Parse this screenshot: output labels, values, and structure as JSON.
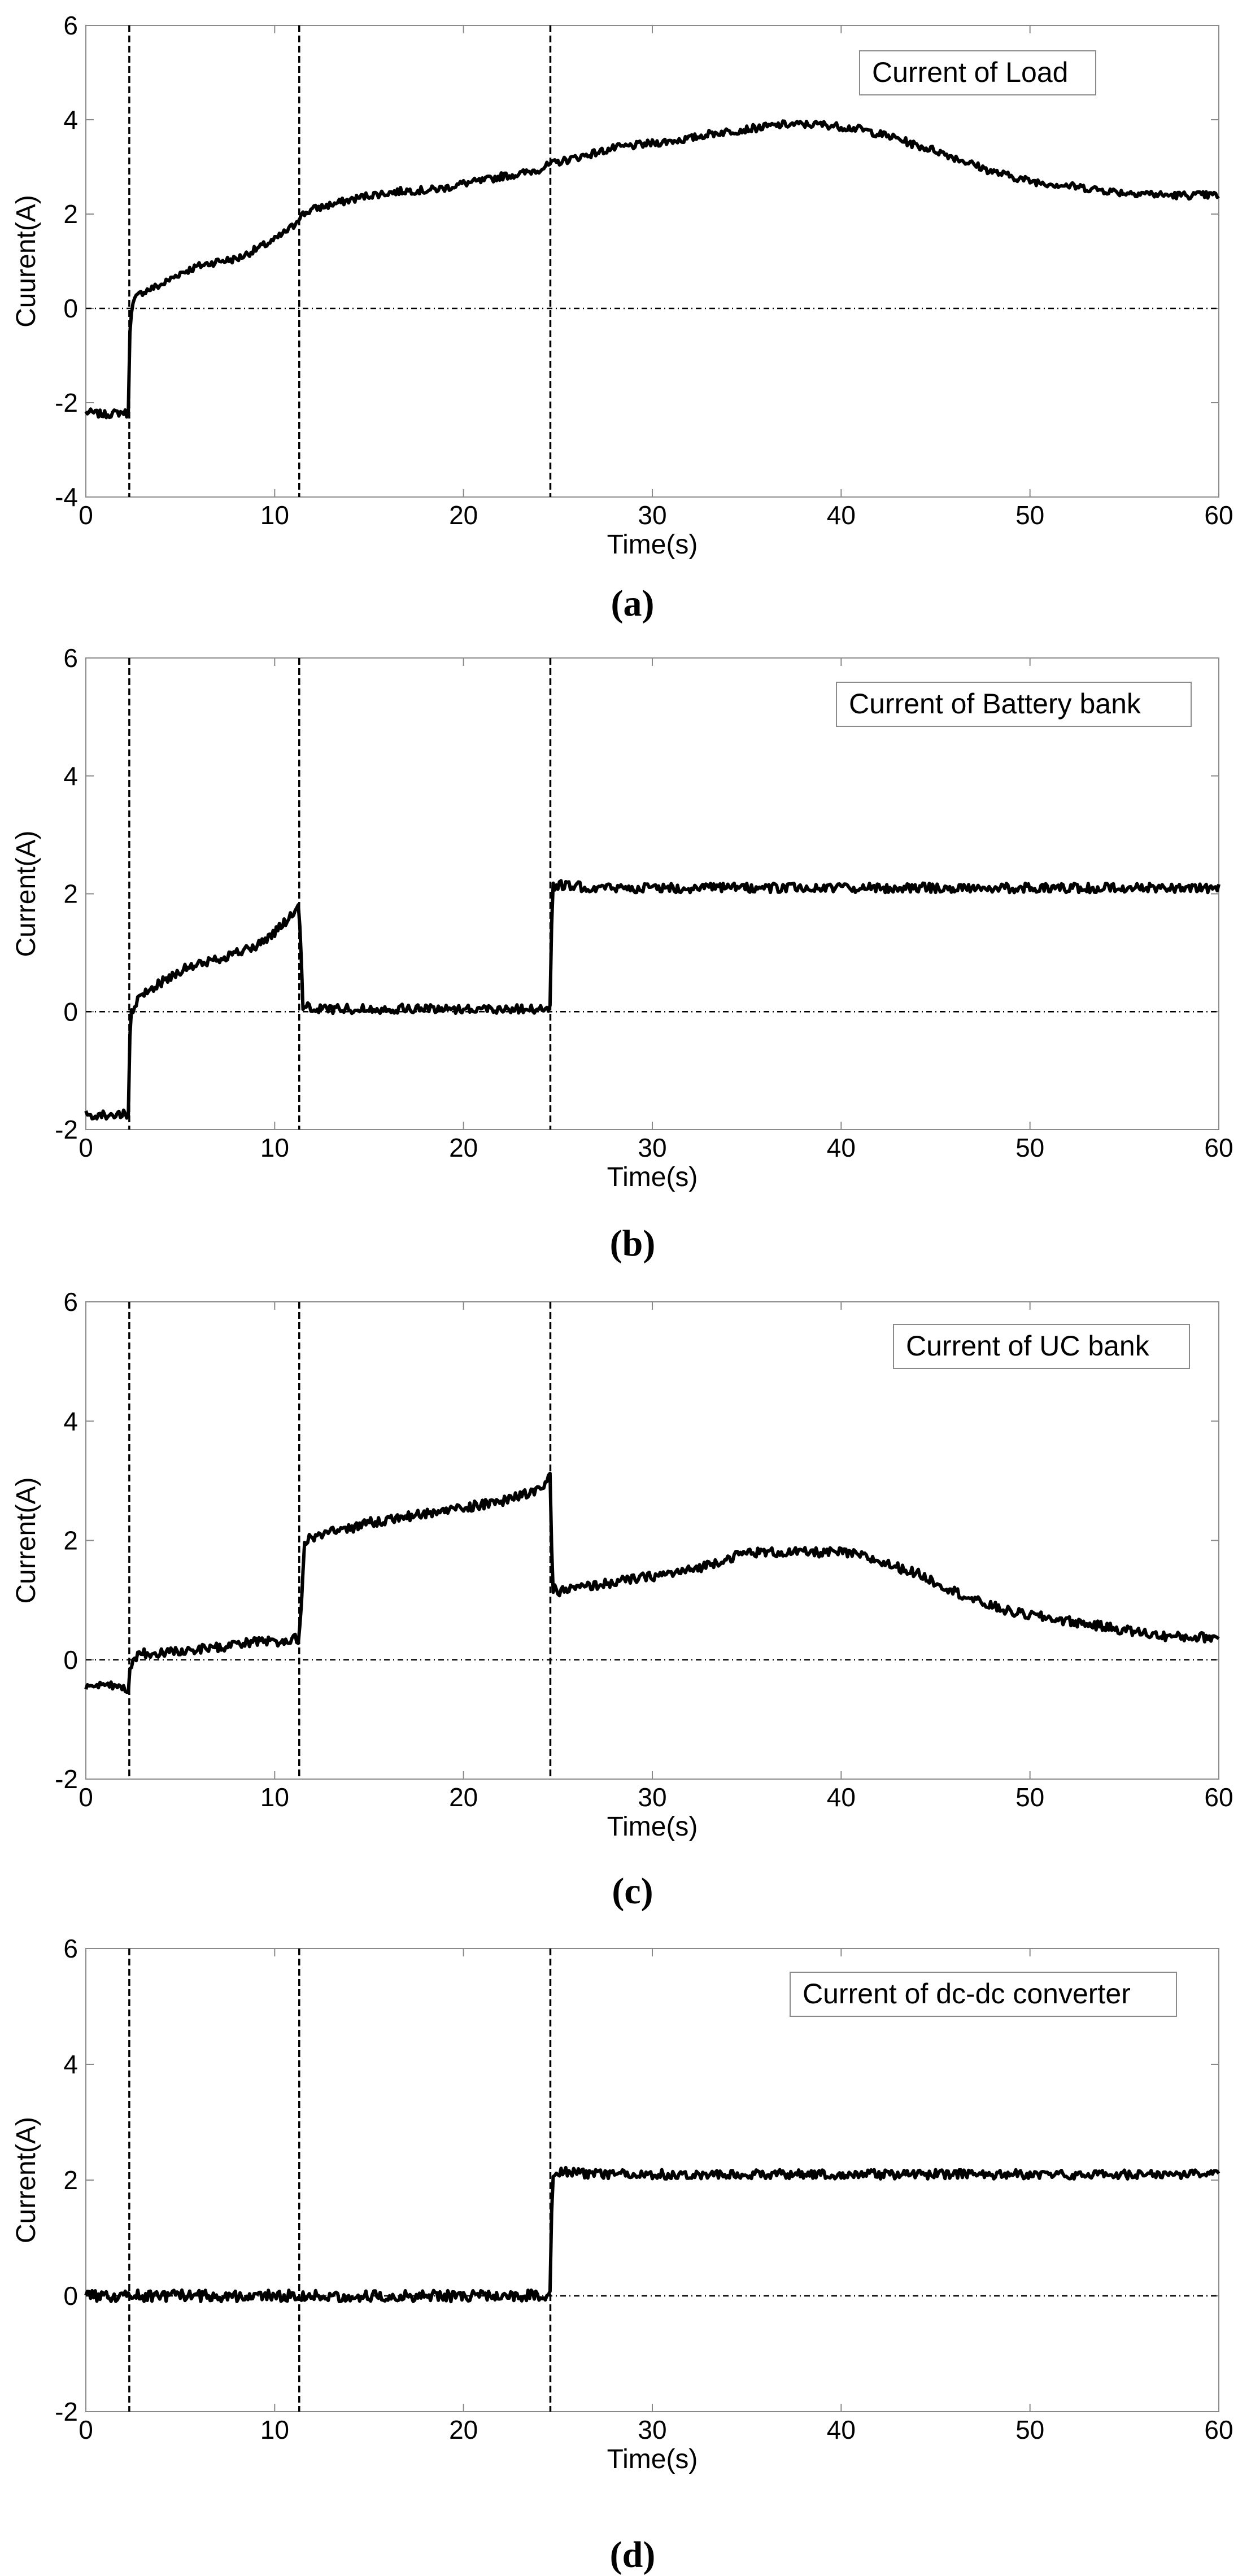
{
  "chart_data": [
    {
      "id": "a",
      "type": "line",
      "caption": "(a)",
      "legend": "Current of Load",
      "xlabel": "Time(s)",
      "ylabel": "Cuurent(A)",
      "xlim": [
        0,
        60
      ],
      "ylim": [
        -4,
        6
      ],
      "xticks": [
        0,
        10,
        20,
        30,
        40,
        50,
        60
      ],
      "yticks": [
        -4,
        -2,
        0,
        2,
        4,
        6
      ],
      "vlines": [
        2.3,
        11.3,
        24.6
      ],
      "hline": 0,
      "line_color": "#000000",
      "series": [
        {
          "x": [
            0,
            1,
            2,
            2.25,
            2.35,
            2.6,
            3,
            4,
            5,
            6,
            7,
            8,
            9,
            10,
            11,
            11.3,
            12,
            13,
            14,
            15,
            16,
            17,
            18,
            19,
            20,
            21,
            22,
            23,
            24,
            24.6,
            25,
            26,
            27,
            28,
            29,
            30,
            31,
            32,
            33,
            34,
            35,
            36,
            37,
            38,
            39,
            40,
            41,
            42,
            43,
            44,
            45,
            46,
            47,
            48,
            49,
            50,
            51,
            52,
            53,
            54,
            55,
            56,
            57,
            58,
            59,
            60
          ],
          "y": [
            -2.2,
            -2.25,
            -2.2,
            -2.25,
            -0.1,
            0.2,
            0.35,
            0.5,
            0.75,
            0.9,
            1.0,
            1.05,
            1.25,
            1.45,
            1.75,
            1.95,
            2.1,
            2.2,
            2.3,
            2.4,
            2.45,
            2.5,
            2.5,
            2.55,
            2.65,
            2.7,
            2.8,
            2.85,
            2.95,
            3.05,
            3.1,
            3.2,
            3.3,
            3.4,
            3.45,
            3.5,
            3.55,
            3.6,
            3.7,
            3.75,
            3.8,
            3.85,
            3.9,
            3.9,
            3.9,
            3.85,
            3.8,
            3.7,
            3.6,
            3.45,
            3.35,
            3.2,
            3.05,
            2.9,
            2.8,
            2.7,
            2.65,
            2.6,
            2.55,
            2.5,
            2.45,
            2.45,
            2.4,
            2.4,
            2.4,
            2.4
          ]
        }
      ]
    },
    {
      "id": "b",
      "type": "line",
      "caption": "(b)",
      "legend": "Current of Battery bank",
      "xlabel": "Time(s)",
      "ylabel": "Current(A)",
      "xlim": [
        0,
        60
      ],
      "ylim": [
        -2,
        6
      ],
      "xticks": [
        0,
        10,
        20,
        30,
        40,
        50,
        60
      ],
      "yticks": [
        -2,
        0,
        2,
        4,
        6
      ],
      "vlines": [
        2.3,
        11.3,
        24.6
      ],
      "hline": 0,
      "line_color": "#000000",
      "series": [
        {
          "x": [
            0,
            1,
            2,
            2.25,
            2.35,
            2.6,
            3,
            4,
            5,
            6,
            7,
            8,
            9,
            10,
            10.8,
            11.3,
            11.5,
            12,
            14,
            16,
            17,
            18,
            20,
            22,
            24,
            24.6,
            24.7,
            25,
            27,
            30,
            35,
            40,
            45,
            50,
            55,
            60
          ],
          "y": [
            -1.75,
            -1.75,
            -1.75,
            -1.8,
            -0.1,
            0.1,
            0.3,
            0.5,
            0.7,
            0.8,
            0.9,
            1.0,
            1.1,
            1.35,
            1.6,
            1.75,
            0.1,
            0.05,
            0.05,
            0.05,
            0.05,
            0.05,
            0.05,
            0.05,
            0.05,
            0.05,
            2.1,
            2.15,
            2.1,
            2.1,
            2.1,
            2.1,
            2.1,
            2.1,
            2.1,
            2.1
          ]
        }
      ]
    },
    {
      "id": "c",
      "type": "line",
      "caption": "(c)",
      "legend": "Current of UC bank",
      "xlabel": "Time(s)",
      "ylabel": "Current(A)",
      "xlim": [
        0,
        60
      ],
      "ylim": [
        -2,
        6
      ],
      "xticks": [
        0,
        10,
        20,
        30,
        40,
        50,
        60
      ],
      "yticks": [
        -2,
        0,
        2,
        4,
        6
      ],
      "vlines": [
        2.3,
        11.3,
        24.6
      ],
      "hline": 0,
      "line_color": "#000000",
      "series": [
        {
          "x": [
            0,
            1,
            2,
            2.25,
            2.35,
            2.6,
            3,
            5,
            7,
            8,
            9,
            10,
            11,
            11.3,
            11.6,
            12,
            13,
            14,
            15,
            16,
            17,
            18,
            19,
            20,
            21,
            22,
            23,
            24,
            24.6,
            24.7,
            25,
            26,
            27,
            28,
            29,
            30,
            31,
            32,
            33,
            34,
            35,
            36,
            37,
            38,
            39,
            40,
            41,
            42,
            43,
            44,
            45,
            46,
            47,
            48,
            49,
            50,
            51,
            52,
            53,
            54,
            55,
            56,
            57,
            58,
            59,
            60
          ],
          "y": [
            -0.45,
            -0.45,
            -0.45,
            -0.5,
            -0.1,
            0.05,
            0.1,
            0.15,
            0.2,
            0.25,
            0.3,
            0.3,
            0.35,
            0.35,
            2.0,
            2.05,
            2.15,
            2.2,
            2.3,
            2.35,
            2.4,
            2.45,
            2.5,
            2.55,
            2.6,
            2.65,
            2.75,
            2.85,
            3.05,
            1.2,
            1.15,
            1.2,
            1.25,
            1.3,
            1.35,
            1.4,
            1.45,
            1.5,
            1.6,
            1.7,
            1.8,
            1.8,
            1.8,
            1.8,
            1.8,
            1.8,
            1.75,
            1.65,
            1.55,
            1.45,
            1.3,
            1.15,
            1.0,
            0.9,
            0.8,
            0.75,
            0.7,
            0.65,
            0.6,
            0.55,
            0.5,
            0.45,
            0.4,
            0.38,
            0.38,
            0.38
          ]
        }
      ]
    },
    {
      "id": "d",
      "type": "line",
      "caption": "(d)",
      "legend": "Current of dc-dc converter",
      "xlabel": "Time(s)",
      "ylabel": "Current(A)",
      "xlim": [
        0,
        60
      ],
      "ylim": [
        -2,
        6
      ],
      "xticks": [
        0,
        10,
        20,
        30,
        40,
        50,
        60
      ],
      "yticks": [
        -2,
        0,
        2,
        4,
        6
      ],
      "vlines": [
        2.3,
        11.3,
        24.6
      ],
      "hline": 0,
      "line_color": "#000000",
      "series": [
        {
          "x": [
            0,
            5,
            10,
            15,
            20,
            24.6,
            24.7,
            25,
            27,
            30,
            35,
            40,
            45,
            50,
            55,
            60
          ],
          "y": [
            0,
            0,
            0,
            0,
            0,
            0,
            2.1,
            2.15,
            2.1,
            2.1,
            2.1,
            2.1,
            2.1,
            2.1,
            2.1,
            2.1
          ]
        }
      ]
    }
  ]
}
